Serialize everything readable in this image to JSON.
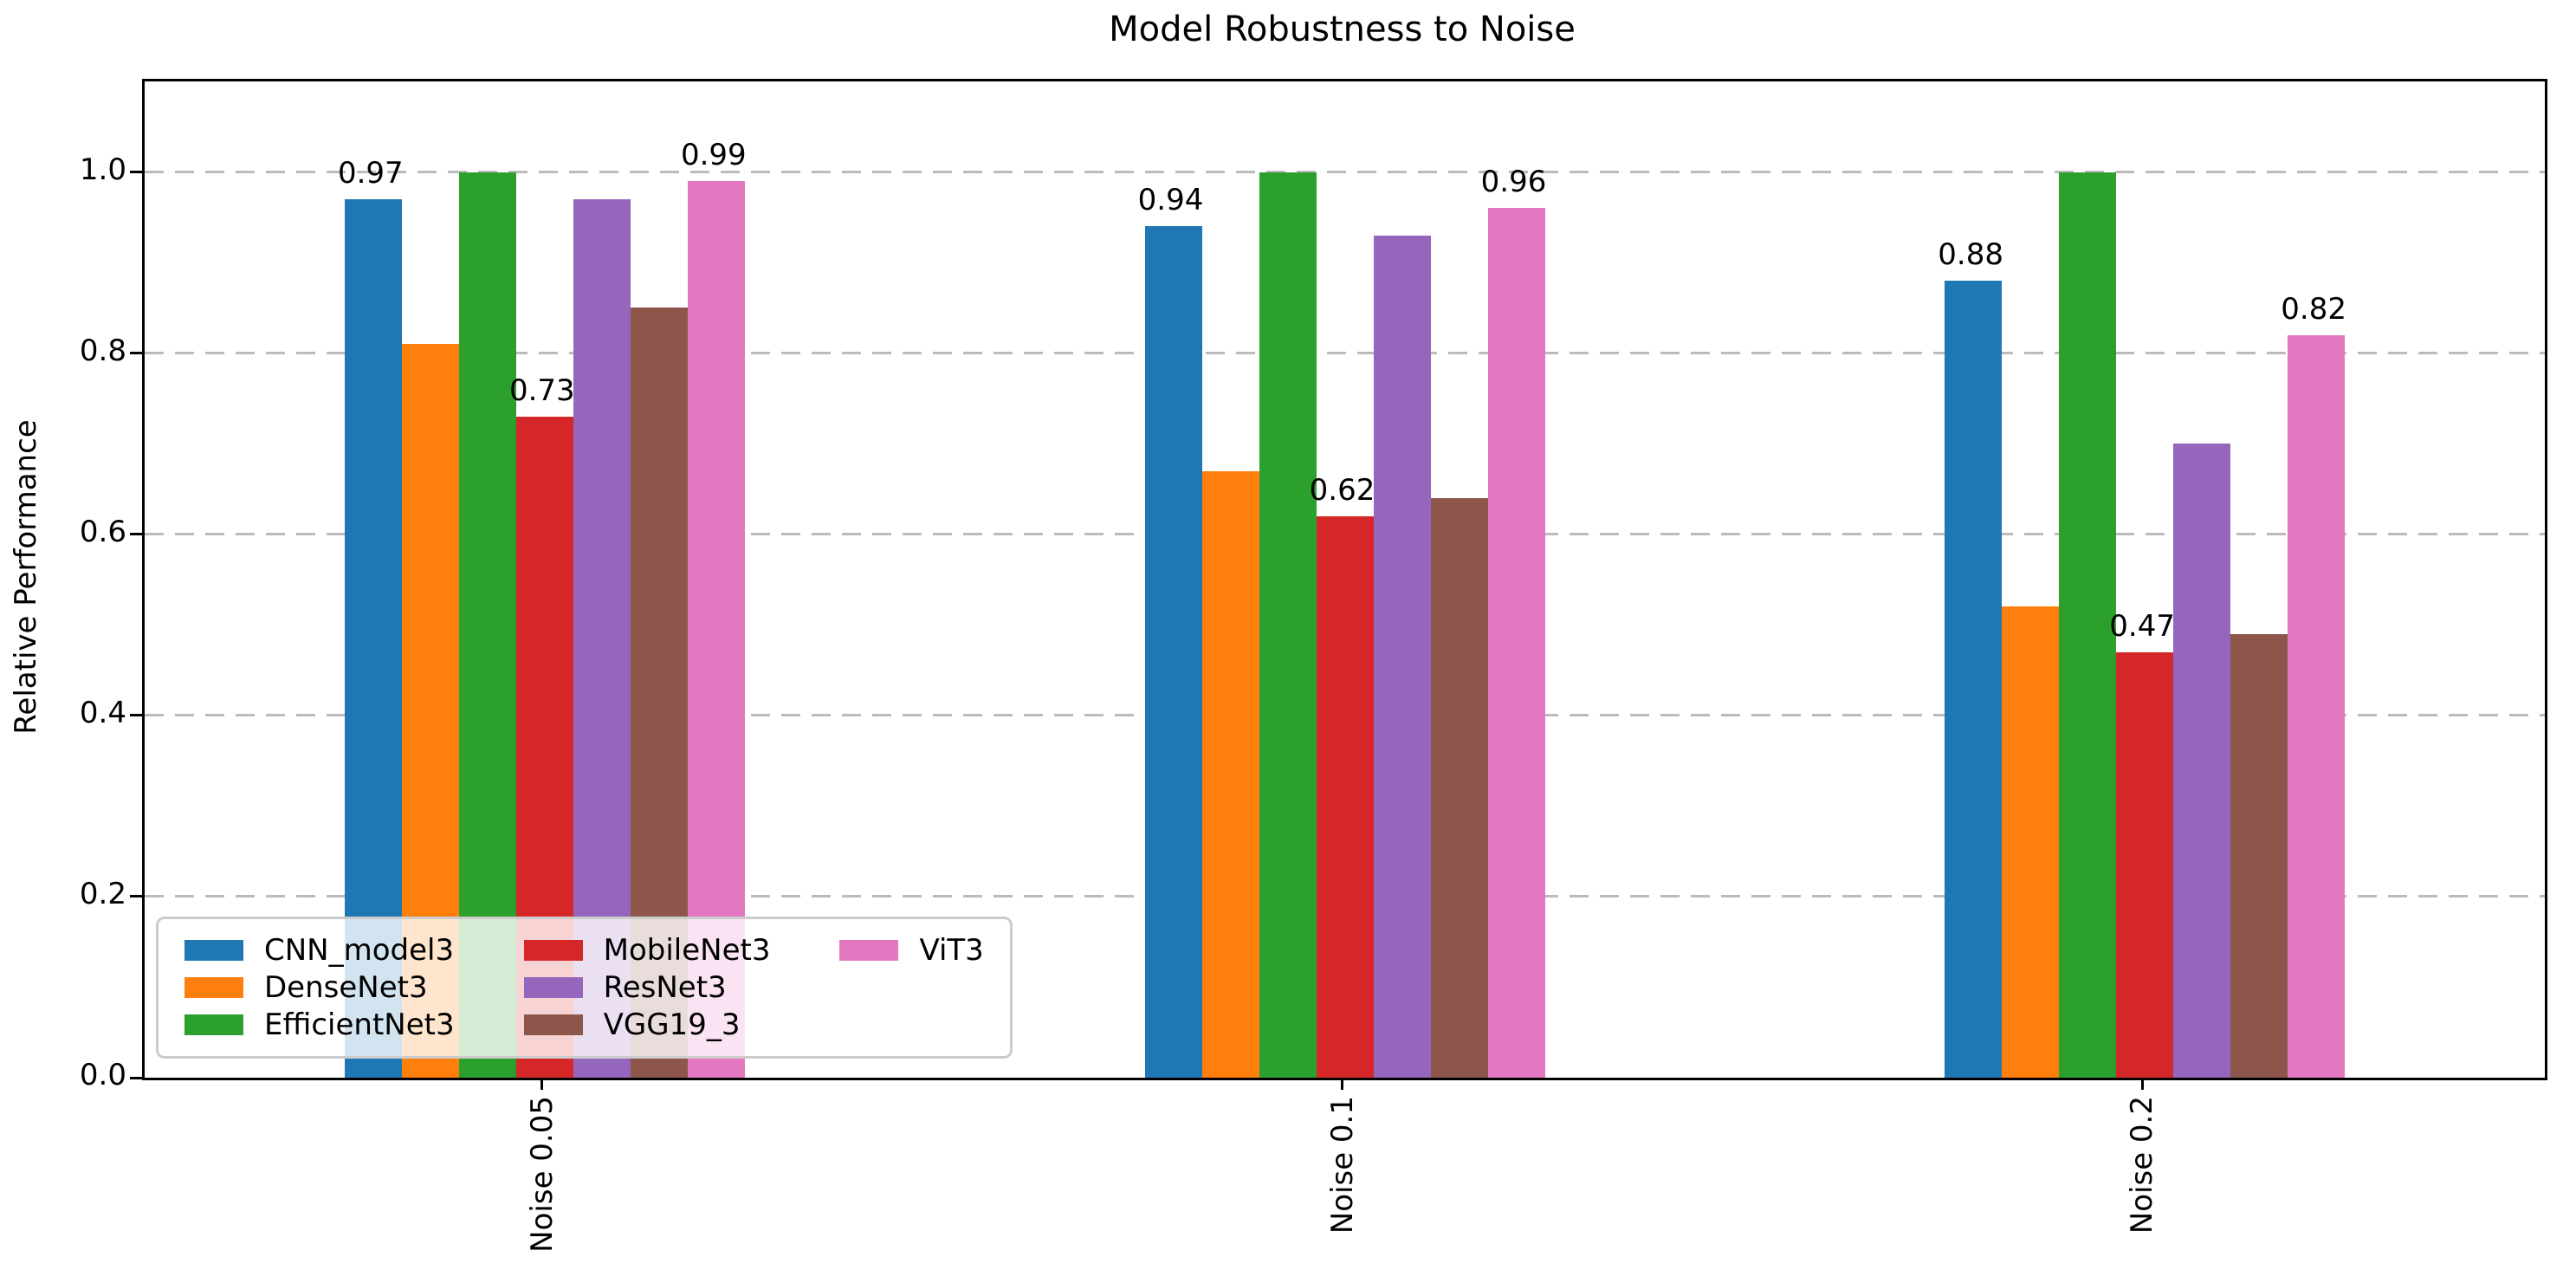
{
  "figure": {
    "title": "Model Robustness to Noise",
    "background_color": "#ffffff",
    "text_color": "#000000",
    "gridline_color": "#bbbbbb",
    "spine_color": "#000000"
  },
  "chart_data": {
    "type": "bar",
    "title": "Model Robustness to Noise",
    "xlabel": "",
    "ylabel": "Relative Performance",
    "categories": [
      "Noise 0.05",
      "Noise 0.1",
      "Noise 0.2"
    ],
    "series": [
      {
        "name": "CNN_model3",
        "color": "#1f77b4",
        "values": [
          0.97,
          0.94,
          0.88
        ],
        "value_labels": [
          "0.97",
          "0.94",
          "0.88"
        ]
      },
      {
        "name": "DenseNet3",
        "color": "#ff7f0e",
        "values": [
          0.81,
          0.67,
          0.52
        ],
        "value_labels": null
      },
      {
        "name": "EfficientNet3",
        "color": "#2ca02c",
        "values": [
          1.0,
          1.0,
          1.0
        ],
        "value_labels": null
      },
      {
        "name": "MobileNet3",
        "color": "#d62728",
        "values": [
          0.73,
          0.62,
          0.47
        ],
        "value_labels": [
          "0.73",
          "0.62",
          "0.47"
        ]
      },
      {
        "name": "ResNet3",
        "color": "#9467bd",
        "values": [
          0.97,
          0.93,
          0.7
        ],
        "value_labels": null
      },
      {
        "name": "VGG19_3",
        "color": "#8c564b",
        "values": [
          0.85,
          0.64,
          0.49
        ],
        "value_labels": null
      },
      {
        "name": "ViT3",
        "color": "#e377c2",
        "values": [
          0.99,
          0.96,
          0.82
        ],
        "value_labels": [
          "0.99",
          "0.96",
          "0.82"
        ]
      }
    ],
    "ylim": [
      0,
      1.1
    ],
    "ytick_values": [
      0.0,
      0.2,
      0.4,
      0.6,
      0.8,
      1.0
    ],
    "ytick_labels": [
      "0.0",
      "0.2",
      "0.4",
      "0.6",
      "0.8",
      "1.0"
    ],
    "grid": "horizontal dashed",
    "xtick_rotation": 90,
    "legend_position": "lower left",
    "legend_columns": 3
  }
}
